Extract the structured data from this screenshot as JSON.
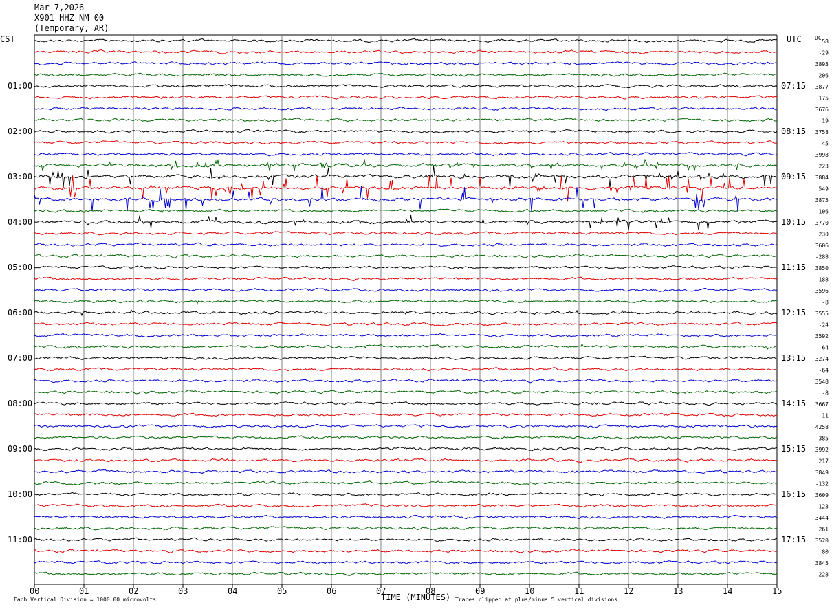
{
  "header": {
    "date": "Mar 7,2026",
    "station": "X901 HHZ NM 00",
    "location": "(Temporary, AR)"
  },
  "left_tz": "CST",
  "right_tz": "UTC",
  "dc_label": "DC",
  "footer": {
    "scale_note": "Each Vertical Division = 1000.00 microvolts",
    "clip_note": "Traces clipped at plus/minus 5 vertical divisions"
  },
  "colors": {
    "trace_cycle": [
      "#000000",
      "#e00000",
      "#0000d0",
      "#006400"
    ],
    "grid": "#808080"
  },
  "chart_data": {
    "type": "line",
    "xlabel": "TIME (MINUTES)",
    "xlim": [
      0,
      15
    ],
    "x_ticks": [
      "00",
      "01",
      "02",
      "03",
      "04",
      "05",
      "06",
      "07",
      "08",
      "09",
      "10",
      "11",
      "12",
      "13",
      "14",
      "15"
    ],
    "trace_count": 48,
    "minutes_per_trace": 15,
    "left_hour_labels": [
      "01:00",
      "02:00",
      "03:00",
      "04:00",
      "05:00",
      "06:00",
      "07:00",
      "08:00",
      "09:00",
      "10:00",
      "11:00"
    ],
    "right_hour_labels": [
      "07:15",
      "08:15",
      "09:15",
      "10:15",
      "11:15",
      "12:15",
      "13:15",
      "14:15",
      "15:15",
      "16:15",
      "17:15"
    ],
    "dc_offsets": [
      "58",
      "-29",
      "3893",
      "206",
      "3877",
      "175",
      "3676",
      "19",
      "3758",
      "-45",
      "3998",
      "223",
      "3884",
      "549",
      "3875",
      "106",
      "3770",
      "230",
      "3606",
      "-288",
      "3850",
      "188",
      "3596",
      "-8",
      "3555",
      "-24",
      "3592",
      "64",
      "3274",
      "-64",
      "3548",
      "-8",
      "3667",
      "11",
      "4258",
      "-385",
      "3992",
      "217",
      "3849",
      "-132",
      "3609",
      "123",
      "3444",
      "261",
      "3520",
      "80",
      "3845",
      "-228"
    ],
    "event_trace_amplitude": [
      1,
      1,
      1,
      1,
      1,
      1,
      1,
      1,
      1,
      1,
      1,
      1.5,
      2.6,
      3.2,
      3.0,
      1.3,
      1.8,
      1,
      1,
      1,
      1,
      1,
      1,
      1.3,
      1.3,
      1,
      1,
      1.2,
      1,
      1,
      1,
      1,
      1,
      1,
      1,
      1,
      1,
      1,
      1,
      1,
      1,
      1,
      1,
      1,
      1,
      1,
      1,
      1
    ]
  }
}
